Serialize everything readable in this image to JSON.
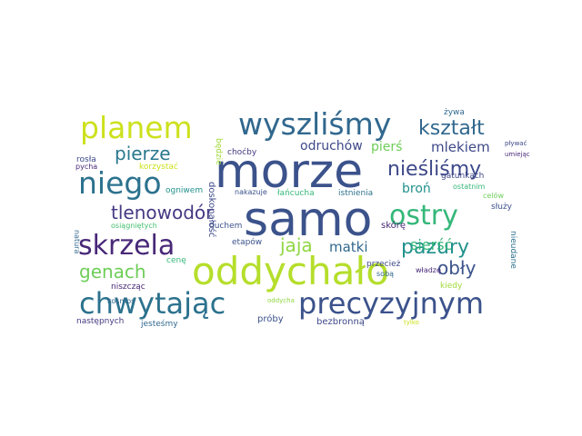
{
  "words": [
    {
      "text": "morze",
      "color": "#3b528b"
    },
    {
      "text": "samo",
      "color": "#3b528b"
    },
    {
      "text": "oddychało",
      "color": "#b5de2b"
    },
    {
      "text": "chwytając",
      "color": "#2c728e"
    },
    {
      "text": "precyzyjnym",
      "color": "#3b528b"
    },
    {
      "text": "wyszliśmy",
      "color": "#31688e"
    },
    {
      "text": "planem",
      "color": "#cde11d"
    },
    {
      "text": "niego",
      "color": "#2c728e"
    },
    {
      "text": "skrzela",
      "color": "#482878"
    },
    {
      "text": "ostry",
      "color": "#35b779"
    },
    {
      "text": "kształt",
      "color": "#31688e"
    },
    {
      "text": "nieśliśmy",
      "color": "#3e4989"
    },
    {
      "text": "pierze",
      "color": "#2a788e"
    },
    {
      "text": "tlenowodór",
      "color": "#443983"
    },
    {
      "text": "pazury",
      "color": "#21918c"
    },
    {
      "text": "jaja",
      "color": "#90d743"
    },
    {
      "text": "genach",
      "color": "#6ece58"
    },
    {
      "text": "obły",
      "color": "#3b528b"
    },
    {
      "text": "matki",
      "color": "#31688e"
    },
    {
      "text": "sierść",
      "color": "#35b779"
    },
    {
      "text": "mlekiem",
      "color": "#3e4989"
    },
    {
      "text": "odruchów",
      "color": "#3e4989"
    },
    {
      "text": "pierś",
      "color": "#6ece58"
    },
    {
      "text": "broń",
      "color": "#21918c"
    },
    {
      "text": "skórę",
      "color": "#482878"
    },
    {
      "text": "doskonałość",
      "color": "#3e4989"
    },
    {
      "text": "będzie",
      "color": "#a0da39"
    },
    {
      "text": "gatunkach",
      "color": "#3e4989"
    },
    {
      "text": "ostatnim",
      "color": "#35b779"
    },
    {
      "text": "celów",
      "color": "#6ece58"
    },
    {
      "text": "służy",
      "color": "#3b528b"
    },
    {
      "text": "żywa",
      "color": "#31688e"
    },
    {
      "text": "pływać",
      "color": "#3e4989"
    },
    {
      "text": "umiejąc",
      "color": "#482878"
    },
    {
      "text": "choćby",
      "color": "#443983"
    },
    {
      "text": "rosła",
      "color": "#3e4989"
    },
    {
      "text": "korzystać",
      "color": "#cde11d"
    },
    {
      "text": "pycha",
      "color": "#482878"
    },
    {
      "text": "ogniwem",
      "color": "#21918c"
    },
    {
      "text": "łańcucha",
      "color": "#35b779"
    },
    {
      "text": "istnienia",
      "color": "#2c728e"
    },
    {
      "text": "nakazuje",
      "color": "#3b528b"
    },
    {
      "text": "osiągniętych",
      "color": "#44bf70"
    },
    {
      "text": "duchem",
      "color": "#3b528b"
    },
    {
      "text": "natura",
      "color": "#31688e"
    },
    {
      "text": "etapów",
      "color": "#3b528b"
    },
    {
      "text": "cenę",
      "color": "#35b779"
    },
    {
      "text": "przecież",
      "color": "#3e4989"
    },
    {
      "text": "władzę",
      "color": "#482878"
    },
    {
      "text": "sobą",
      "color": "#31688e"
    },
    {
      "text": "niszcząc",
      "color": "#482878"
    },
    {
      "text": "kosmos",
      "color": "#31688e"
    },
    {
      "text": "nieudane",
      "color": "#2c728e"
    },
    {
      "text": "kiedy",
      "color": "#a0da39"
    },
    {
      "text": "oddycha",
      "color": "#90d743"
    },
    {
      "text": "tylko",
      "color": "#cde11d"
    },
    {
      "text": "następnych",
      "color": "#443983"
    },
    {
      "text": "jesteśmy",
      "color": "#31688e"
    },
    {
      "text": "próby",
      "color": "#3b528b"
    },
    {
      "text": "bezbronną",
      "color": "#3e4989"
    }
  ]
}
